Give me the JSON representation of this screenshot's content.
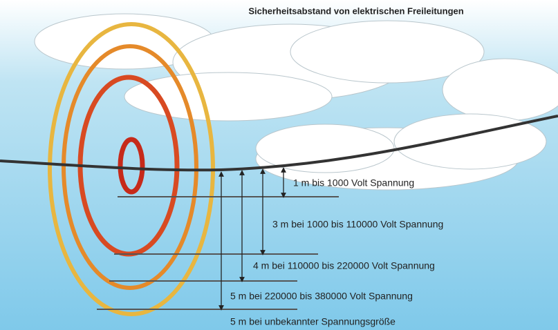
{
  "title": "Sicherheitsabstand von elektrischen Freileitungen",
  "labels": [
    "1 m bis 1000 Volt Spannung",
    "3 m bei 1000 bis 110000 Volt Spannung",
    "4 m bei 110000 bis 220000 Volt Spannung",
    "5 m bei 220000 bis 380000 Volt Spannung",
    "5 m bei unbekannter Spannungsgröße"
  ]
}
